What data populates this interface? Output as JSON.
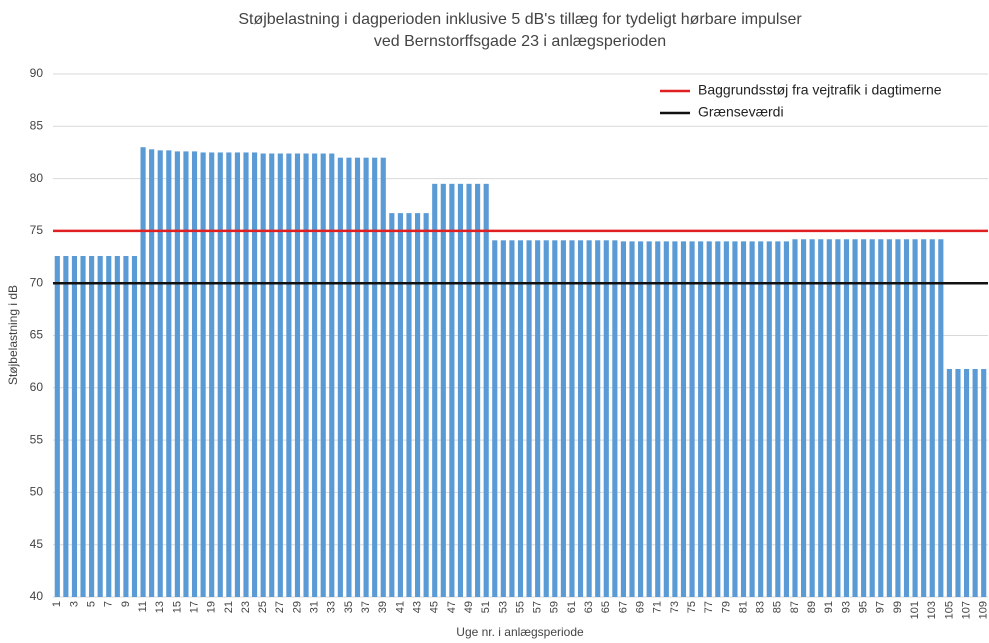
{
  "chart_data": {
    "type": "bar",
    "title": [
      "Støjbelastning i dagperioden inklusive 5 dB's tillæg for tydeligt hørbare impulser",
      "ved Bernstorffsgade 23 i anlægsperioden"
    ],
    "x_label": "Uge nr. i anlægsperiode",
    "y_label": "Støjbelastning i dB",
    "categories": [
      1,
      null,
      3,
      null,
      5,
      null,
      7,
      null,
      9,
      null,
      11,
      null,
      13,
      null,
      15,
      null,
      17,
      null,
      19,
      null,
      21,
      null,
      23,
      null,
      25,
      null,
      27,
      null,
      29,
      null,
      31,
      null,
      33,
      null,
      35,
      null,
      37,
      null,
      39,
      null,
      41,
      null,
      43,
      null,
      45,
      null,
      47,
      null,
      49,
      null,
      51,
      null,
      53,
      null,
      55,
      null,
      57,
      null,
      59,
      null,
      61,
      null,
      63,
      null,
      65,
      null,
      67,
      null,
      69,
      null,
      71,
      null,
      73,
      null,
      75,
      null,
      77,
      null,
      79,
      null,
      81,
      null,
      83,
      null,
      85,
      null,
      87,
      null,
      89,
      null,
      91,
      null,
      93,
      null,
      95,
      null,
      97,
      null,
      99,
      null,
      101,
      null,
      103,
      null,
      105,
      null,
      107,
      null,
      109
    ],
    "values": [
      72.6,
      72.6,
      72.6,
      72.6,
      72.6,
      72.6,
      72.6,
      72.6,
      72.6,
      72.6,
      83.0,
      82.8,
      82.7,
      82.7,
      82.6,
      82.6,
      82.6,
      82.5,
      82.5,
      82.5,
      82.5,
      82.5,
      82.5,
      82.5,
      82.4,
      82.4,
      82.4,
      82.4,
      82.4,
      82.4,
      82.4,
      82.4,
      82.4,
      82.0,
      82.0,
      82.0,
      82.0,
      82.0,
      82.0,
      76.7,
      76.7,
      76.7,
      76.7,
      76.7,
      79.5,
      79.5,
      79.5,
      79.5,
      79.5,
      79.5,
      79.5,
      74.1,
      74.1,
      74.1,
      74.1,
      74.1,
      74.1,
      74.1,
      74.1,
      74.1,
      74.1,
      74.1,
      74.1,
      74.1,
      74.1,
      74.1,
      74.0,
      74.0,
      74.0,
      74.0,
      74.0,
      74.0,
      74.0,
      74.0,
      74.0,
      74.0,
      74.0,
      74.0,
      74.0,
      74.0,
      74.0,
      74.0,
      74.0,
      74.0,
      74.0,
      74.0,
      74.2,
      74.2,
      74.2,
      74.2,
      74.2,
      74.2,
      74.2,
      74.2,
      74.2,
      74.2,
      74.2,
      74.2,
      74.2,
      74.2,
      74.2,
      74.2,
      74.2,
      74.2,
      61.8,
      61.8,
      61.8,
      61.8,
      61.8
    ],
    "color": "#5b9bd5",
    "lines": [
      {
        "name": "Baggrundsstøj fra vejtrafik i dagtimerne",
        "color": "#e02020",
        "value": 75
      },
      {
        "name": "Grænseværdi",
        "color": "#111111",
        "value": 70
      }
    ],
    "legend": "top-right",
    "ylim": [
      40,
      90
    ],
    "yticks": [
      40,
      45,
      50,
      55,
      60,
      65,
      70,
      75,
      80,
      85,
      90
    ],
    "grid": true
  }
}
